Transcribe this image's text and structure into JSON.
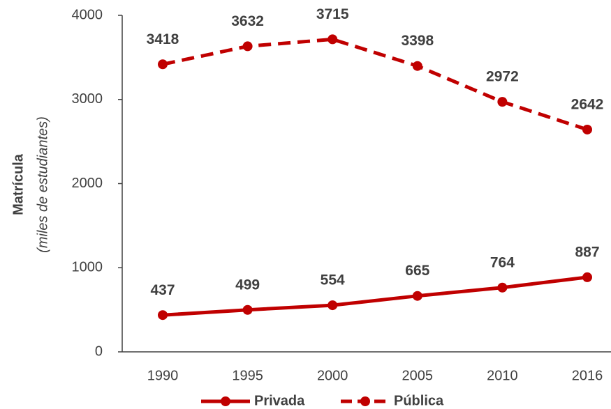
{
  "chart_data": {
    "type": "line",
    "ylabel": "Matrícula",
    "ylabel_sub": "(miles de estudiantes)",
    "categories": [
      "1990",
      "1995",
      "2000",
      "2005",
      "2010",
      "2016"
    ],
    "series": [
      {
        "name": "Privada",
        "color": "#c00000",
        "style": "solid",
        "values": [
          437,
          499,
          554,
          665,
          764,
          887
        ]
      },
      {
        "name": "Pública",
        "color": "#c00000",
        "style": "dashed",
        "values": [
          3418,
          3632,
          3715,
          3398,
          2972,
          2642
        ]
      }
    ],
    "ylim": [
      0,
      4000
    ],
    "yticks": [
      0,
      1000,
      2000,
      3000,
      4000
    ],
    "grid": false,
    "legend": "bottom",
    "data_labels": true
  }
}
